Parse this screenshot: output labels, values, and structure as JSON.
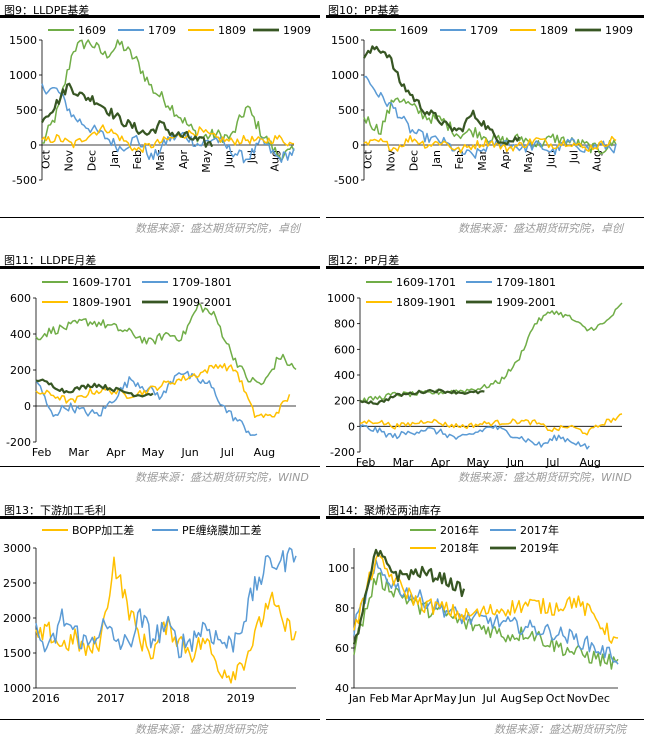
{
  "colors": {
    "light_green": "#70AD47",
    "blue": "#5B9BD5",
    "yellow": "#FFC000",
    "dark_green": "#375623",
    "source_gray": "#9b9b9b"
  },
  "sources": {
    "row1": "数据来源：盛达期货研究院，卓创",
    "row1b": "数据来源：盛达期货研究院，卓创",
    "row2": "数据来源：盛达期货研究院，WIND",
    "row2b": "数据来源：盛达期货研究院，WIND",
    "row3": "数据来源：盛达期货研究院",
    "row3b": "数据来源：盛达期货研究院"
  },
  "chart_data": [
    {
      "id": "fig9",
      "type": "line",
      "title": "图9：LLDPE基差",
      "x_ticks": [
        "Oct",
        "Nov",
        "Dec",
        "Jan",
        "Feb",
        "Mar",
        "Apr",
        "May",
        "Jun",
        "Jul",
        "Aug"
      ],
      "y_ticks": [
        "-500",
        "0",
        "500",
        "1000",
        "1500"
      ],
      "ylim": [
        -500,
        1500
      ],
      "legend_position": "top",
      "series": [
        {
          "name": "1609",
          "color": "light_green",
          "values": [
            0,
            480,
            1380,
            1480,
            1280,
            1450,
            1200,
            800,
            600,
            350,
            100,
            150,
            100,
            550,
            150,
            -150,
            -100
          ]
        },
        {
          "name": "1709",
          "color": "blue",
          "values": [
            820,
            780,
            400,
            250,
            120,
            -50,
            100,
            -200,
            80,
            150,
            0,
            100,
            -80,
            -200,
            50,
            -200,
            -100
          ]
        },
        {
          "name": "1809",
          "color": "yellow",
          "values": [
            50,
            100,
            0,
            150,
            250,
            100,
            -80,
            0,
            80,
            150,
            200,
            100,
            50,
            80,
            50,
            100,
            0
          ]
        },
        {
          "name": "1909",
          "color": "dark_green",
          "values": [
            380,
            560,
            860,
            700,
            650,
            500,
            350,
            250,
            150,
            300,
            150,
            120,
            50,
            0
          ]
        }
      ]
    },
    {
      "id": "fig10",
      "type": "line",
      "title": "图10：PP基差",
      "x_ticks": [
        "Oct",
        "Nov",
        "Dec",
        "Jan",
        "Feb",
        "Mar",
        "Apr",
        "May",
        "Jun",
        "Jul",
        "Aug"
      ],
      "y_ticks": [
        "-500",
        "0",
        "500",
        "1000",
        "1500"
      ],
      "ylim": [
        -500,
        1500
      ],
      "legend_position": "top",
      "series": [
        {
          "name": "1609",
          "color": "light_green",
          "values": [
            400,
            200,
            700,
            550,
            400,
            350,
            150,
            200,
            100,
            50,
            100,
            0,
            100,
            50,
            0,
            -80,
            50
          ]
        },
        {
          "name": "1709",
          "color": "blue",
          "values": [
            1000,
            700,
            500,
            200,
            100,
            50,
            -100,
            -150,
            0,
            50,
            -50,
            0,
            -100,
            50,
            -50,
            0,
            -50
          ]
        },
        {
          "name": "1809",
          "color": "yellow",
          "values": [
            0,
            50,
            -50,
            100,
            0,
            50,
            -80,
            0,
            50,
            -50,
            0,
            80,
            0,
            50,
            -50,
            0,
            100
          ]
        },
        {
          "name": "1909",
          "color": "dark_green",
          "values": [
            1250,
            1400,
            1300,
            900,
            700,
            500,
            400,
            250,
            200,
            450,
            300,
            100,
            50,
            100
          ]
        }
      ]
    },
    {
      "id": "fig11",
      "type": "line",
      "title": "图11：LLDPE月差",
      "x_ticks": [
        "Feb",
        "Mar",
        "Apr",
        "May",
        "Jun",
        "Jul",
        "Aug"
      ],
      "y_ticks": [
        "-200",
        "0",
        "200",
        "400",
        "600"
      ],
      "ylim": [
        -200,
        600
      ],
      "legend_position": "top",
      "series": [
        {
          "name": "1609-1701",
          "color": "light_green",
          "values": [
            380,
            420,
            440,
            470,
            460,
            430,
            400,
            350,
            400,
            380,
            560,
            500,
            300,
            150,
            120,
            280,
            200
          ]
        },
        {
          "name": "1709-1801",
          "color": "blue",
          "values": [
            150,
            -50,
            0,
            -30,
            -50,
            50,
            150,
            100,
            50,
            200,
            150,
            120,
            -20,
            -100,
            -180
          ]
        },
        {
          "name": "1809-1901",
          "color": "yellow",
          "values": [
            80,
            60,
            20,
            80,
            90,
            60,
            80,
            120,
            150,
            180,
            230,
            200,
            -50,
            -60,
            60
          ]
        },
        {
          "name": "1909-2001",
          "color": "dark_green",
          "values": [
            150,
            120,
            80,
            100,
            120,
            100,
            80,
            60,
            70
          ]
        }
      ]
    },
    {
      "id": "fig12",
      "type": "line",
      "title": "图12：PP月差",
      "x_ticks": [
        "Feb",
        "Mar",
        "Apr",
        "May",
        "Jun",
        "Jul",
        "Aug"
      ],
      "y_ticks": [
        "-200",
        "0",
        "200",
        "400",
        "600",
        "800",
        "1000"
      ],
      "ylim": [
        -200,
        1000
      ],
      "legend_position": "top",
      "series": [
        {
          "name": "1609-1701",
          "color": "light_green",
          "values": [
            200,
            220,
            250,
            250,
            260,
            270,
            280,
            300,
            350,
            500,
            800,
            900,
            850,
            750,
            800,
            950
          ]
        },
        {
          "name": "1709-1801",
          "color": "blue",
          "values": [
            0,
            -30,
            -80,
            -50,
            -20,
            -50,
            -100,
            -50,
            0,
            -50,
            -100,
            -150,
            -80,
            -120,
            -180
          ]
        },
        {
          "name": "1809-1901",
          "color": "yellow",
          "values": [
            30,
            40,
            0,
            20,
            50,
            10,
            0,
            20,
            30,
            40,
            30,
            -30,
            0,
            -50,
            30,
            80
          ]
        },
        {
          "name": "1909-2001",
          "color": "dark_green",
          "values": [
            200,
            180,
            240,
            260,
            280,
            270,
            260,
            270
          ]
        }
      ]
    },
    {
      "id": "fig13",
      "type": "line",
      "title": "图13：下游加工毛利",
      "x_ticks": [
        "2016",
        "2017",
        "2018",
        "2019"
      ],
      "y_ticks": [
        "1000",
        "1500",
        "2000",
        "2500",
        "3000"
      ],
      "ylim": [
        1000,
        3000
      ],
      "legend_position": "top",
      "series": [
        {
          "name": "BOPP加工差",
          "color": "yellow",
          "values": [
            1700,
            1800,
            1600,
            1700,
            1500,
            1700,
            2800,
            2200,
            1700,
            1500,
            1900,
            1700,
            1500,
            1700,
            1300,
            1200,
            1400,
            1800,
            2300,
            1900,
            1800
          ]
        },
        {
          "name": "PE缠绕膜加工差",
          "color": "blue",
          "values": [
            1800,
            1500,
            2000,
            1800,
            1600,
            1900,
            1700,
            1600,
            2000,
            1700,
            1900,
            1600,
            1700,
            1900,
            1700,
            1600,
            2000,
            2500,
            2800,
            2800,
            3000
          ]
        }
      ]
    },
    {
      "id": "fig14",
      "type": "line",
      "title": "图14：聚烯烃两油库存",
      "x_ticks": [
        "Jan",
        "Feb",
        "Mar",
        "Apr",
        "May",
        "Jun",
        "Jul",
        "Aug",
        "Sep",
        "Oct",
        "Nov",
        "Dec"
      ],
      "y_ticks": [
        "40",
        "60",
        "80",
        "100"
      ],
      "ylim": [
        40,
        110
      ],
      "legend_position": "top",
      "series": [
        {
          "name": "2016年",
          "color": "light_green",
          "values": [
            60,
            95,
            88,
            80,
            78,
            72,
            70,
            66,
            68,
            62,
            58,
            55,
            52
          ]
        },
        {
          "name": "2017年",
          "color": "blue",
          "values": [
            70,
            100,
            90,
            85,
            80,
            75,
            74,
            72,
            70,
            68,
            65,
            60,
            55
          ]
        },
        {
          "name": "2018年",
          "color": "yellow",
          "values": [
            68,
            105,
            92,
            82,
            80,
            76,
            78,
            80,
            82,
            80,
            84,
            75,
            62
          ]
        },
        {
          "name": "2019年",
          "color": "dark_green",
          "values": [
            60,
            108,
            96,
            98,
            95,
            88
          ]
        }
      ]
    }
  ]
}
